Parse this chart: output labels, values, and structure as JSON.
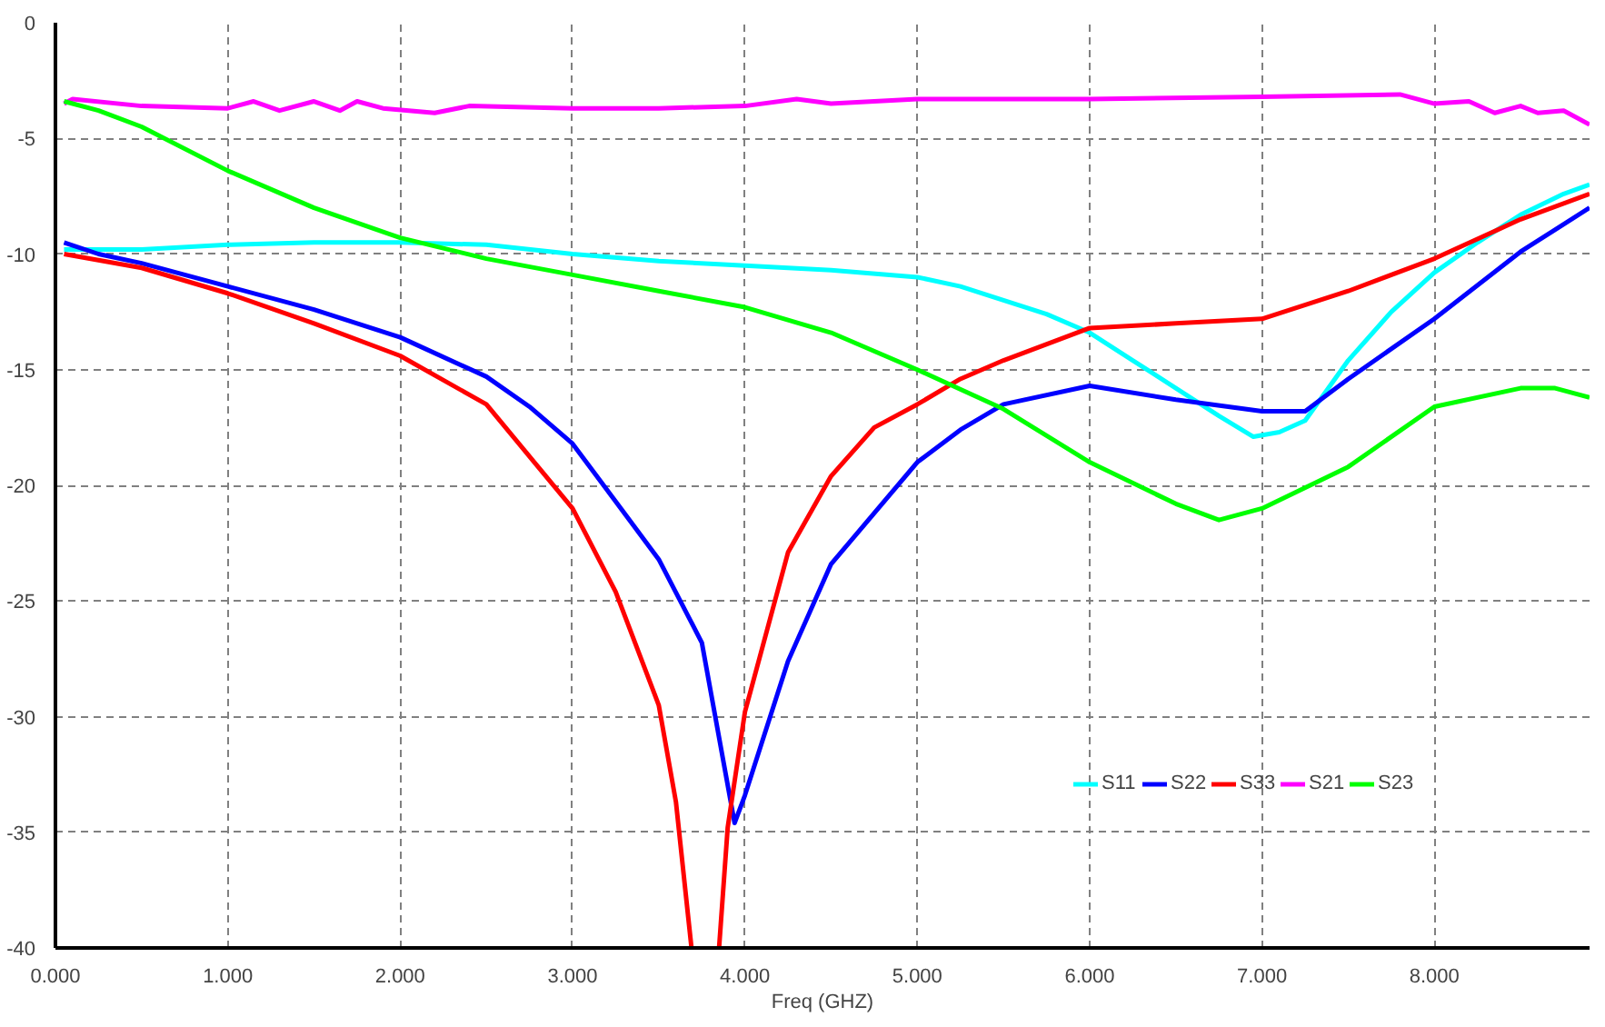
{
  "chart_data": {
    "type": "line",
    "xlabel": "Freq (GHZ)",
    "xlim": [
      0,
      8.9
    ],
    "ylim": [
      -40,
      0
    ],
    "xticks": [
      {
        "value": 0,
        "label": "0.000"
      },
      {
        "value": 1,
        "label": "1.000"
      },
      {
        "value": 2,
        "label": "2.000"
      },
      {
        "value": 3,
        "label": "3.000"
      },
      {
        "value": 4,
        "label": "4.000"
      },
      {
        "value": 5,
        "label": "5.000"
      },
      {
        "value": 6,
        "label": "6.000"
      },
      {
        "value": 7,
        "label": "7.000"
      },
      {
        "value": 8,
        "label": "8.000"
      }
    ],
    "yticks": [
      0,
      -5,
      -10,
      -15,
      -20,
      -25,
      -30,
      -35,
      -40
    ],
    "grid": true,
    "legend": "bottom right",
    "marker": "none",
    "line_style": "solid",
    "series": [
      {
        "name": "S11",
        "color": "#00ffff",
        "x": [
          0.05,
          0.5,
          1,
          1.5,
          2,
          2.5,
          3,
          3.5,
          4,
          4.5,
          5,
          5.25,
          5.5,
          5.75,
          6,
          6.25,
          6.5,
          6.75,
          6.95,
          7.1,
          7.25,
          7.5,
          7.75,
          8,
          8.25,
          8.5,
          8.75,
          8.9
        ],
        "values": [
          -9.8,
          -9.8,
          -9.6,
          -9.5,
          -9.5,
          -9.6,
          -10.0,
          -10.3,
          -10.5,
          -10.7,
          -11.0,
          -11.4,
          -12.0,
          -12.6,
          -13.4,
          -14.6,
          -15.8,
          -17.0,
          -17.9,
          -17.7,
          -17.2,
          -14.6,
          -12.5,
          -10.8,
          -9.5,
          -8.3,
          -7.4,
          -7.0
        ]
      },
      {
        "name": "S22",
        "color": "#0000ff",
        "x": [
          0.05,
          0.25,
          0.5,
          1,
          1.5,
          2,
          2.5,
          2.75,
          3,
          3.25,
          3.5,
          3.75,
          3.94,
          4.0,
          4.25,
          4.5,
          4.75,
          5.0,
          5.25,
          5.5,
          6.0,
          6.5,
          7.0,
          7.25,
          7.5,
          8.0,
          8.5,
          8.9
        ],
        "values": [
          -9.5,
          -10.0,
          -10.4,
          -11.4,
          -12.4,
          -13.6,
          -15.3,
          -16.6,
          -18.2,
          -20.7,
          -23.2,
          -26.8,
          -34.6,
          -33.4,
          -27.6,
          -23.4,
          -21.2,
          -19.0,
          -17.6,
          -16.5,
          -15.7,
          -16.3,
          -16.8,
          -16.8,
          -15.4,
          -12.8,
          -9.9,
          -8.0
        ]
      },
      {
        "name": "S33",
        "color": "#ff0000",
        "x": [
          0.05,
          0.5,
          1,
          1.5,
          2,
          2.5,
          2.8,
          3.0,
          3.25,
          3.5,
          3.6,
          3.69,
          3.77,
          3.85,
          3.9,
          4.0,
          4.25,
          4.5,
          4.75,
          5.0,
          5.25,
          5.5,
          6.0,
          6.5,
          7.0,
          7.5,
          8.0,
          8.5,
          8.9
        ],
        "values": [
          -10.0,
          -10.6,
          -11.7,
          -13.0,
          -14.4,
          -16.5,
          -19.2,
          -21.0,
          -24.6,
          -29.5,
          -33.7,
          -40,
          null,
          -40,
          -34.8,
          -29.8,
          -22.9,
          -19.6,
          -17.5,
          -16.5,
          -15.4,
          -14.6,
          -13.2,
          -13.0,
          -12.8,
          -11.6,
          -10.2,
          -8.5,
          -7.4
        ]
      },
      {
        "name": "S21",
        "color": "#ff00ff",
        "x": [
          0.05,
          0.1,
          0.5,
          1.0,
          1.15,
          1.3,
          1.5,
          1.65,
          1.75,
          1.9,
          2.2,
          2.4,
          3.0,
          3.5,
          4.0,
          4.3,
          4.5,
          5.0,
          6.0,
          7.0,
          7.8,
          8.0,
          8.2,
          8.35,
          8.5,
          8.6,
          8.75,
          8.9
        ],
        "values": [
          -3.5,
          -3.3,
          -3.6,
          -3.7,
          -3.4,
          -3.8,
          -3.4,
          -3.8,
          -3.4,
          -3.7,
          -3.9,
          -3.6,
          -3.7,
          -3.7,
          -3.6,
          -3.3,
          -3.5,
          -3.3,
          -3.3,
          -3.2,
          -3.1,
          -3.5,
          -3.4,
          -3.9,
          -3.6,
          -3.9,
          -3.8,
          -4.4
        ]
      },
      {
        "name": "S23",
        "color": "#00ff00",
        "x": [
          0.05,
          0.25,
          0.5,
          1,
          1.5,
          2,
          2.5,
          3,
          3.5,
          4,
          4.5,
          5,
          5.5,
          6,
          6.5,
          6.75,
          7,
          7.5,
          8,
          8.5,
          8.7,
          8.9
        ],
        "values": [
          -3.4,
          -3.8,
          -4.5,
          -6.4,
          -8.0,
          -9.3,
          -10.2,
          -10.9,
          -11.6,
          -12.3,
          -13.4,
          -15.0,
          -16.7,
          -19.0,
          -20.8,
          -21.5,
          -21.0,
          -19.2,
          -16.6,
          -15.8,
          -15.8,
          -16.2
        ]
      }
    ]
  }
}
